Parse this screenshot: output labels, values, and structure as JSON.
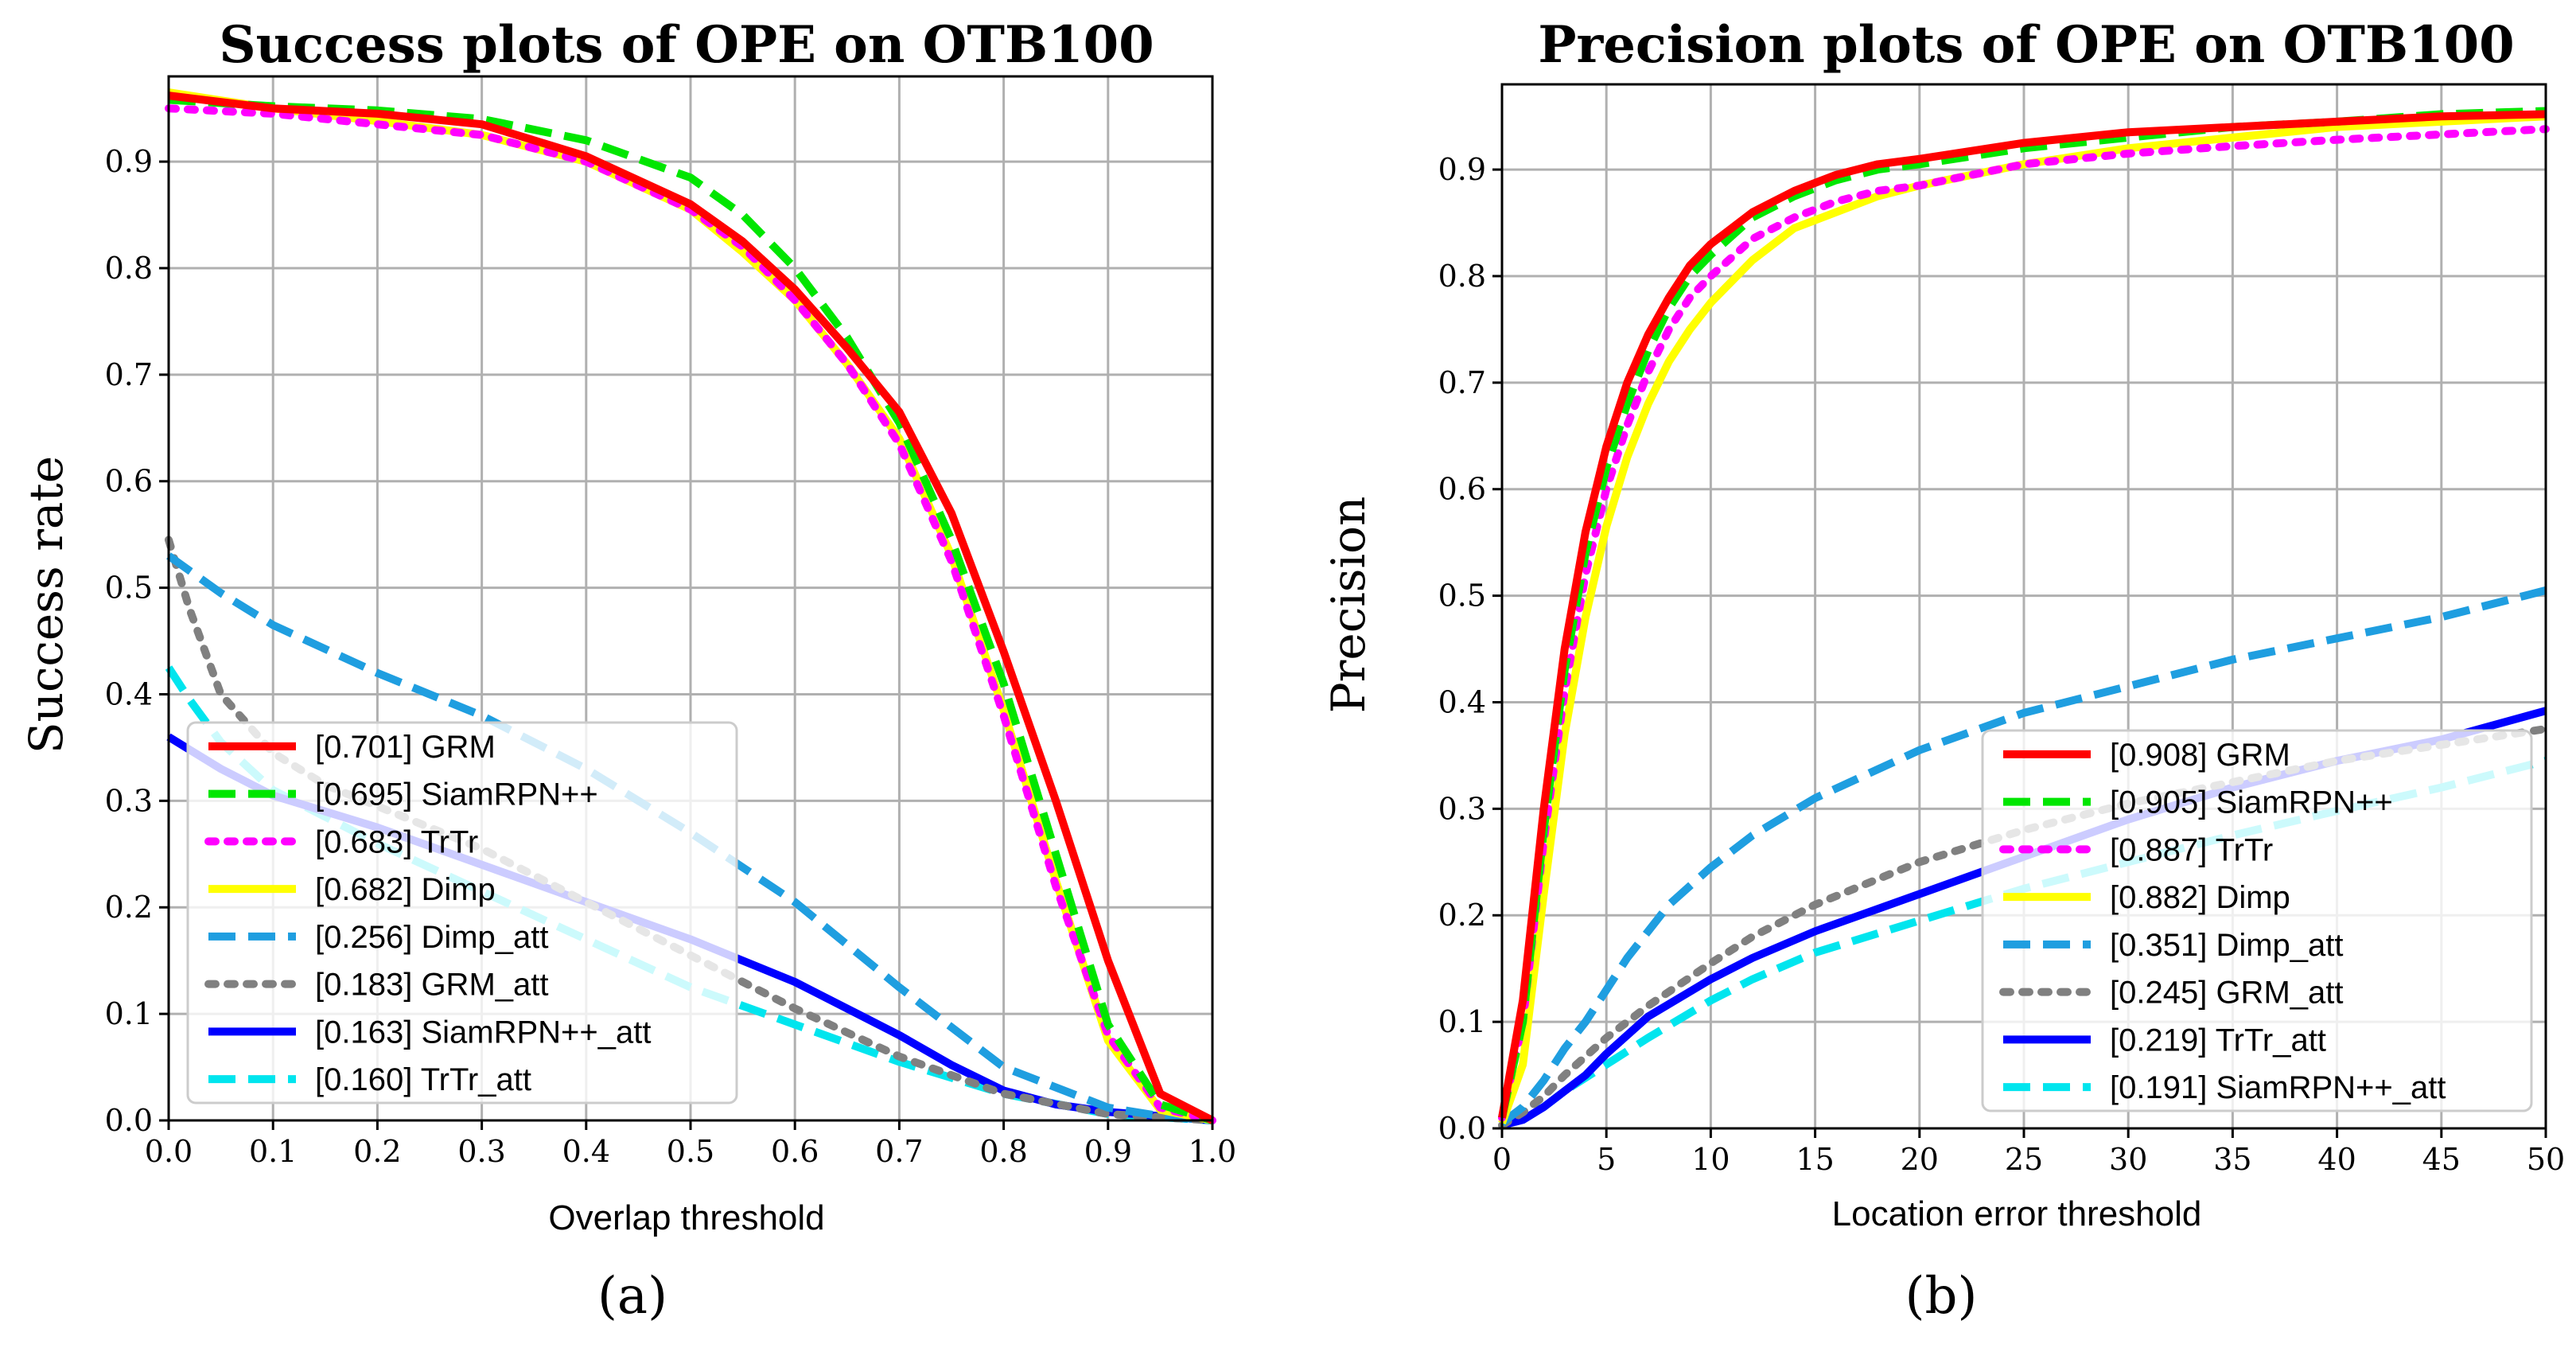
{
  "chart_data": [
    {
      "type": "line",
      "title": "Success plots of OPE on OTB100",
      "xlabel": "Overlap threshold",
      "ylabel": "Success rate",
      "xlim": [
        0,
        1
      ],
      "ylim": [
        0,
        0.98
      ],
      "xticks": [
        "0.0",
        "0.1",
        "0.2",
        "0.3",
        "0.4",
        "0.5",
        "0.6",
        "0.7",
        "0.8",
        "0.9",
        "1.0"
      ],
      "yticks": [
        "0.0",
        "0.1",
        "0.2",
        "0.3",
        "0.4",
        "0.5",
        "0.6",
        "0.7",
        "0.8",
        "0.9"
      ],
      "grid": true,
      "legend_position": "lower-left",
      "caption": "(a)",
      "series": [
        {
          "name": "[0.701] GRM",
          "color": "#ff0000",
          "style": "solid",
          "x": [
            0,
            0.1,
            0.2,
            0.3,
            0.4,
            0.5,
            0.55,
            0.6,
            0.65,
            0.7,
            0.75,
            0.8,
            0.85,
            0.9,
            0.95,
            1.0
          ],
          "y": [
            0.962,
            0.95,
            0.945,
            0.935,
            0.905,
            0.86,
            0.825,
            0.78,
            0.725,
            0.665,
            0.57,
            0.44,
            0.3,
            0.15,
            0.025,
            0.0
          ]
        },
        {
          "name": "[0.695] SiamRPN++",
          "color": "#00e600",
          "style": "dashed",
          "x": [
            0,
            0.1,
            0.2,
            0.3,
            0.4,
            0.5,
            0.55,
            0.6,
            0.65,
            0.7,
            0.75,
            0.8,
            0.85,
            0.9,
            0.95,
            1.0
          ],
          "y": [
            0.958,
            0.952,
            0.948,
            0.94,
            0.92,
            0.885,
            0.85,
            0.8,
            0.735,
            0.655,
            0.545,
            0.41,
            0.25,
            0.09,
            0.015,
            0.0
          ]
        },
        {
          "name": "[0.683] TrTr",
          "color": "#ff00ff",
          "style": "dotted",
          "x": [
            0,
            0.1,
            0.2,
            0.3,
            0.4,
            0.5,
            0.55,
            0.6,
            0.65,
            0.7,
            0.75,
            0.8,
            0.85,
            0.9,
            0.95,
            1.0
          ],
          "y": [
            0.95,
            0.945,
            0.935,
            0.925,
            0.9,
            0.855,
            0.82,
            0.77,
            0.71,
            0.635,
            0.525,
            0.38,
            0.22,
            0.08,
            0.012,
            0.0
          ]
        },
        {
          "name": "[0.682] Dimp",
          "color": "#ffff00",
          "style": "solid",
          "x": [
            0,
            0.1,
            0.2,
            0.3,
            0.4,
            0.5,
            0.55,
            0.6,
            0.65,
            0.7,
            0.75,
            0.8,
            0.85,
            0.9,
            0.95,
            1.0
          ],
          "y": [
            0.965,
            0.95,
            0.938,
            0.925,
            0.9,
            0.855,
            0.815,
            0.77,
            0.71,
            0.64,
            0.53,
            0.385,
            0.225,
            0.075,
            0.01,
            0.0
          ]
        },
        {
          "name": "[0.256] Dimp_att",
          "color": "#1f9ee0",
          "style": "dashed",
          "x": [
            0,
            0.05,
            0.1,
            0.2,
            0.3,
            0.4,
            0.5,
            0.6,
            0.7,
            0.8,
            0.9,
            0.95,
            1.0
          ],
          "y": [
            0.53,
            0.495,
            0.465,
            0.42,
            0.38,
            0.33,
            0.27,
            0.205,
            0.125,
            0.05,
            0.012,
            0.004,
            0.0
          ]
        },
        {
          "name": "[0.183] GRM_att",
          "color": "#808080",
          "style": "dotted",
          "x": [
            0,
            0.02,
            0.05,
            0.1,
            0.15,
            0.2,
            0.3,
            0.4,
            0.5,
            0.6,
            0.7,
            0.8,
            0.9,
            1.0
          ],
          "y": [
            0.545,
            0.48,
            0.4,
            0.345,
            0.315,
            0.295,
            0.255,
            0.205,
            0.155,
            0.105,
            0.06,
            0.025,
            0.006,
            0.0
          ]
        },
        {
          "name": "[0.163] SiamRPN++_att",
          "color": "#0000ff",
          "style": "solid",
          "x": [
            0,
            0.05,
            0.1,
            0.2,
            0.3,
            0.4,
            0.5,
            0.55,
            0.6,
            0.65,
            0.7,
            0.75,
            0.8,
            0.85,
            0.9,
            1.0
          ],
          "y": [
            0.36,
            0.33,
            0.305,
            0.275,
            0.24,
            0.205,
            0.17,
            0.15,
            0.13,
            0.105,
            0.08,
            0.052,
            0.028,
            0.015,
            0.008,
            0.0
          ]
        },
        {
          "name": "[0.160] TrTr_att",
          "color": "#00e5ee",
          "style": "dashed",
          "x": [
            0,
            0.02,
            0.05,
            0.1,
            0.2,
            0.3,
            0.4,
            0.5,
            0.6,
            0.7,
            0.8,
            0.9,
            1.0
          ],
          "y": [
            0.425,
            0.395,
            0.355,
            0.31,
            0.26,
            0.215,
            0.17,
            0.125,
            0.09,
            0.055,
            0.025,
            0.006,
            0.0
          ]
        }
      ]
    },
    {
      "type": "line",
      "title": "Precision plots of OPE on OTB100",
      "xlabel": "Location error threshold",
      "ylabel": "Precision",
      "xlim": [
        0,
        50
      ],
      "ylim": [
        0,
        0.98
      ],
      "xticks": [
        "0",
        "5",
        "10",
        "15",
        "20",
        "25",
        "30",
        "35",
        "40",
        "45",
        "50"
      ],
      "yticks": [
        "0.0",
        "0.1",
        "0.2",
        "0.3",
        "0.4",
        "0.5",
        "0.6",
        "0.7",
        "0.8",
        "0.9"
      ],
      "grid": true,
      "legend_position": "lower-right",
      "caption": "(b)",
      "series": [
        {
          "name": "[0.908] GRM",
          "color": "#ff0000",
          "style": "solid",
          "x": [
            0,
            1,
            2,
            3,
            4,
            5,
            6,
            7,
            8,
            9,
            10,
            12,
            14,
            16,
            18,
            20,
            25,
            30,
            35,
            40,
            45,
            50
          ],
          "y": [
            0.01,
            0.12,
            0.3,
            0.45,
            0.56,
            0.64,
            0.7,
            0.745,
            0.78,
            0.81,
            0.83,
            0.86,
            0.88,
            0.895,
            0.905,
            0.91,
            0.925,
            0.935,
            0.94,
            0.945,
            0.95,
            0.952
          ]
        },
        {
          "name": "[0.905] SiamRPN++",
          "color": "#00e600",
          "style": "dashed",
          "x": [
            0,
            1,
            2,
            3,
            4,
            5,
            6,
            7,
            8,
            9,
            10,
            12,
            14,
            16,
            18,
            20,
            25,
            30,
            35,
            40,
            45,
            50
          ],
          "y": [
            0.01,
            0.1,
            0.28,
            0.43,
            0.54,
            0.62,
            0.68,
            0.73,
            0.77,
            0.8,
            0.82,
            0.855,
            0.875,
            0.89,
            0.9,
            0.905,
            0.92,
            0.93,
            0.94,
            0.945,
            0.952,
            0.955
          ]
        },
        {
          "name": "[0.887] TrTr",
          "color": "#ff00ff",
          "style": "dotted",
          "x": [
            0,
            1,
            2,
            3,
            4,
            5,
            6,
            7,
            8,
            9,
            10,
            12,
            14,
            16,
            18,
            20,
            25,
            30,
            35,
            40,
            45,
            50
          ],
          "y": [
            0.01,
            0.1,
            0.27,
            0.41,
            0.52,
            0.6,
            0.66,
            0.71,
            0.75,
            0.78,
            0.8,
            0.835,
            0.855,
            0.87,
            0.88,
            0.885,
            0.905,
            0.915,
            0.922,
            0.928,
            0.933,
            0.938
          ]
        },
        {
          "name": "[0.882] Dimp",
          "color": "#ffff00",
          "style": "solid",
          "x": [
            0,
            1,
            2,
            3,
            4,
            5,
            6,
            7,
            8,
            9,
            10,
            12,
            14,
            16,
            18,
            20,
            25,
            30,
            35,
            40,
            45,
            50
          ],
          "y": [
            0.005,
            0.06,
            0.22,
            0.37,
            0.48,
            0.565,
            0.63,
            0.68,
            0.72,
            0.75,
            0.775,
            0.815,
            0.845,
            0.86,
            0.875,
            0.885,
            0.905,
            0.92,
            0.93,
            0.94,
            0.945,
            0.95
          ]
        },
        {
          "name": "[0.351] Dimp_att",
          "color": "#1f9ee0",
          "style": "dashed",
          "x": [
            0,
            1,
            2,
            3,
            4,
            5,
            6,
            8,
            10,
            12,
            15,
            20,
            25,
            30,
            35,
            40,
            45,
            50
          ],
          "y": [
            0.005,
            0.02,
            0.045,
            0.075,
            0.1,
            0.13,
            0.16,
            0.21,
            0.245,
            0.275,
            0.31,
            0.355,
            0.39,
            0.415,
            0.44,
            0.46,
            0.48,
            0.505
          ]
        },
        {
          "name": "[0.245] GRM_att",
          "color": "#808080",
          "style": "dotted",
          "x": [
            0,
            1,
            2,
            3,
            5,
            7,
            10,
            12,
            15,
            20,
            25,
            30,
            35,
            40,
            45,
            50
          ],
          "y": [
            0.003,
            0.015,
            0.03,
            0.05,
            0.085,
            0.115,
            0.155,
            0.18,
            0.21,
            0.25,
            0.28,
            0.305,
            0.325,
            0.345,
            0.36,
            0.375
          ]
        },
        {
          "name": "[0.219] TrTr_att",
          "color": "#0000ff",
          "style": "solid",
          "x": [
            0,
            1,
            2,
            3,
            4,
            5,
            7,
            10,
            12,
            15,
            20,
            25,
            30,
            35,
            40,
            45,
            50
          ],
          "y": [
            0.003,
            0.008,
            0.02,
            0.035,
            0.05,
            0.07,
            0.105,
            0.14,
            0.16,
            0.185,
            0.22,
            0.255,
            0.29,
            0.32,
            0.345,
            0.365,
            0.392
          ]
        },
        {
          "name": "[0.191] SiamRPN++_att",
          "color": "#00e5ee",
          "style": "dashed",
          "x": [
            0,
            1,
            2,
            3,
            5,
            7,
            10,
            12,
            15,
            20,
            25,
            30,
            35,
            40,
            45,
            50
          ],
          "y": [
            0.002,
            0.01,
            0.02,
            0.035,
            0.06,
            0.085,
            0.12,
            0.14,
            0.165,
            0.195,
            0.225,
            0.25,
            0.275,
            0.298,
            0.32,
            0.345
          ]
        }
      ]
    }
  ]
}
